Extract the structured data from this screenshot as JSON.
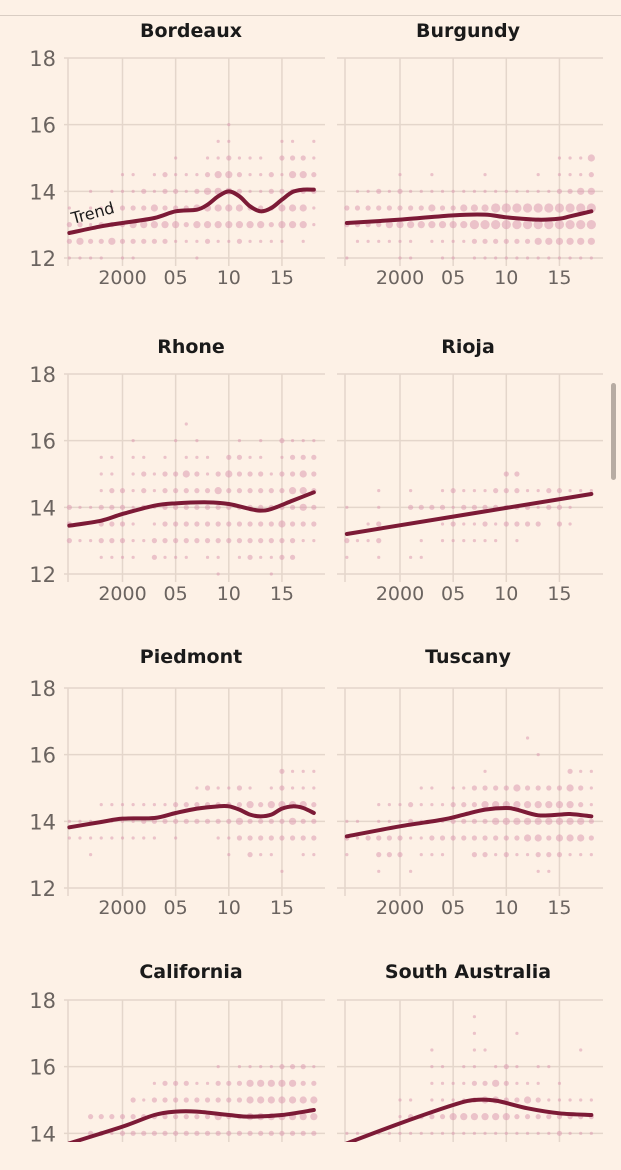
{
  "chart_data": {
    "type": "scatter",
    "layout": "small-multiples",
    "x_ticks": [
      "2000",
      "05",
      "10",
      "15"
    ],
    "x_tick_values": [
      2000,
      2005,
      2010,
      2015
    ],
    "xlim": [
      1994.8,
      2019
    ],
    "y_ticks": [
      "18",
      "16",
      "14",
      "12"
    ],
    "ylim": [
      12,
      18
    ],
    "grid": true,
    "trend_label": "Trend",
    "dot_encoding": "rows of digits per year 1995-2018 at each ABV level; digit = relative dot size (0 = none)",
    "colors": {
      "background": "#fdf1e6",
      "dots": "#dc9bb0",
      "trend": "#7c1a36",
      "grid": "#e4d6cb"
    },
    "panels": [
      {
        "name": "Bordeaux",
        "trend": [
          [
            1995,
            12.75
          ],
          [
            1998,
            12.95
          ],
          [
            2000,
            13.05
          ],
          [
            2003,
            13.2
          ],
          [
            2005,
            13.4
          ],
          [
            2007,
            13.45
          ],
          [
            2008,
            13.6
          ],
          [
            2009,
            13.85
          ],
          [
            2010,
            14.0
          ],
          [
            2011,
            13.85
          ],
          [
            2012,
            13.55
          ],
          [
            2013,
            13.4
          ],
          [
            2014,
            13.5
          ],
          [
            2015,
            13.75
          ],
          [
            2016,
            13.98
          ],
          [
            2017,
            14.05
          ],
          [
            2018,
            14.05
          ]
        ],
        "levels": [
          16,
          15.5,
          15,
          14.5,
          14,
          13.5,
          13,
          12.5,
          12
        ],
        "dots": [
          "000000000000000100000000",
          "000000000000001100001101",
          "000000000010011211102221",
          "000001101211123321121332",
          "001011121221233321122222",
          "101112223222333332223331",
          "221222333332333333323331",
          "232232222211121121111010",
          "111101100000100000000000"
        ]
      },
      {
        "name": "Burgundy",
        "trend": [
          [
            1995,
            13.05
          ],
          [
            2000,
            13.15
          ],
          [
            2005,
            13.28
          ],
          [
            2008,
            13.3
          ],
          [
            2010,
            13.22
          ],
          [
            2013,
            13.15
          ],
          [
            2015,
            13.18
          ],
          [
            2016,
            13.25
          ],
          [
            2018,
            13.4
          ]
        ],
        "levels": [
          15,
          14.5,
          14,
          13.5,
          13,
          12.5,
          12
        ],
        "dots": [
          "000000000000000000001113",
          "000001001000010000101112",
          "011212111111111111112233",
          "222222223223334444444444",
          "222233333333444444444444",
          "011111101111222222333333",
          "100001100110111111111111"
        ]
      },
      {
        "name": "Rhone",
        "trend": [
          [
            1995,
            13.45
          ],
          [
            1998,
            13.6
          ],
          [
            2000,
            13.8
          ],
          [
            2003,
            14.05
          ],
          [
            2005,
            14.12
          ],
          [
            2008,
            14.15
          ],
          [
            2010,
            14.1
          ],
          [
            2012,
            13.95
          ],
          [
            2013,
            13.9
          ],
          [
            2014,
            13.95
          ],
          [
            2016,
            14.2
          ],
          [
            2018,
            14.45
          ]
        ],
        "levels": [
          16.5,
          16,
          15.5,
          15,
          14.5,
          14,
          13.5,
          13,
          12.5,
          12
        ],
        "dots": [
          "000000000001000000000000",
          "000000100010100010102111",
          "000110110101110221101222",
          "000110121223212322212232",
          "000122121222223222222332",
          "211222121222222222222232",
          "210222101222222222223222",
          "211222112222222222222211",
          "000111102111011012112200",
          "000000000000001000010000"
        ]
      },
      {
        "name": "Rioja",
        "trend": [
          [
            1995,
            13.2
          ],
          [
            2018,
            14.4
          ]
        ],
        "levels": [
          15,
          14.5,
          14,
          13.5,
          13,
          12.5
        ],
        "dots": [
          "000000000000000220000000",
          "000100100121112221122111",
          "100100222212222222122100",
          "001200100121121222202100",
          "211200010111111010000000",
          "100100110000000000000000"
        ]
      },
      {
        "name": "Piedmont",
        "trend": [
          [
            1995,
            13.82
          ],
          [
            1998,
            13.98
          ],
          [
            2000,
            14.08
          ],
          [
            2003,
            14.1
          ],
          [
            2005,
            14.25
          ],
          [
            2007,
            14.38
          ],
          [
            2009,
            14.45
          ],
          [
            2010,
            14.45
          ],
          [
            2011,
            14.35
          ],
          [
            2012,
            14.2
          ],
          [
            2013,
            14.15
          ],
          [
            2014,
            14.2
          ],
          [
            2015,
            14.38
          ],
          [
            2016,
            14.45
          ],
          [
            2017,
            14.4
          ],
          [
            2018,
            14.25
          ]
        ],
        "levels": [
          15.5,
          15,
          14.5,
          14,
          13.5,
          13,
          12.5
        ],
        "dots": [
          "000000000000000000002111",
          "000000000000121121012111",
          "000111111122222223233332",
          "111111122222222232222322",
          "111111111010001122222222",
          "001000000000000102110011",
          "000000000000000000001000"
        ]
      },
      {
        "name": "Tuscany",
        "trend": [
          [
            1995,
            13.55
          ],
          [
            2000,
            13.85
          ],
          [
            2004,
            14.05
          ],
          [
            2006,
            14.2
          ],
          [
            2008,
            14.35
          ],
          [
            2010,
            14.4
          ],
          [
            2011,
            14.35
          ],
          [
            2013,
            14.18
          ],
          [
            2015,
            14.2
          ],
          [
            2016,
            14.22
          ],
          [
            2018,
            14.15
          ]
        ],
        "levels": [
          16.5,
          16,
          15.5,
          15,
          14.5,
          14,
          13.5,
          13,
          12.5
        ],
        "dots": [
          "000000000000000001000000",
          "000000000000000000100000",
          "000000000000010000000211",
          "000000011011222232222321",
          "000111211122233333333321",
          "110111211122223333333332",
          "212222112222222223323332",
          "100222011100221211222111",
          "000100100000000000110000"
        ]
      },
      {
        "name": "California",
        "trend": [
          [
            1995,
            13.7
          ],
          [
            2000,
            14.2
          ],
          [
            2003,
            14.55
          ],
          [
            2005,
            14.65
          ],
          [
            2007,
            14.65
          ],
          [
            2010,
            14.55
          ],
          [
            2012,
            14.5
          ],
          [
            2015,
            14.55
          ],
          [
            2018,
            14.7
          ]
        ],
        "levels": [
          16,
          15.5,
          15,
          14.5,
          14
        ],
        "dots": [
          "000000000000001011112221",
          "000000001222112223333322",
          "000000212222222223333333",
          "002222222222223223333333",
          "002212222222222222222222"
        ]
      },
      {
        "name": "South Australia",
        "trend": [
          [
            1995,
            13.7
          ],
          [
            2000,
            14.3
          ],
          [
            2005,
            14.85
          ],
          [
            2007,
            15.0
          ],
          [
            2009,
            14.98
          ],
          [
            2012,
            14.75
          ],
          [
            2015,
            14.6
          ],
          [
            2018,
            14.55
          ]
        ],
        "levels": [
          17.5,
          17,
          16.5,
          16,
          15.5,
          15,
          14.5,
          14
        ],
        "dots": [
          "000000000000100000000000",
          "000000000000100010000000",
          "000000001000110000000010",
          "000000001101101210110000",
          "000000001111223211101000",
          "000001101111233223211111",
          "000001222233333322222222",
          "110111111111111111112111"
        ]
      }
    ]
  }
}
